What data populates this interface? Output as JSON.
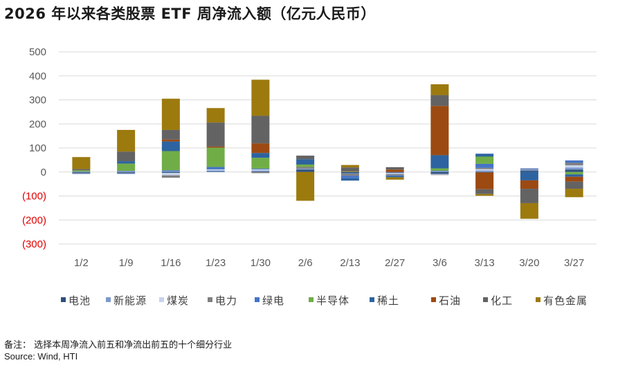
{
  "title": "2026 年以来各类股票 ETF 周净流入额（亿元人民币）",
  "note": "备注：  选择本周净流入前五和净流出前五的十个细分行业",
  "source": "Source: Wind, HTI",
  "colors": {
    "电池": "#2d4f7c",
    "新能源": "#7c99cc",
    "煤炭": "#c7d3ea",
    "电力": "#7f7f7f",
    "绿电": "#4674c5",
    "半导体": "#71ad47",
    "稀土": "#2d63a0",
    "石油": "#9c4a12",
    "化工": "#636363",
    "有色金属": "#9c7a0e",
    "negative_tick": "#e00000",
    "grid": "#d9d9d9"
  },
  "chart_data": {
    "type": "bar",
    "stacked": true,
    "title": "2026 年以来各类股票 ETF 周净流入额（亿元人民币）",
    "xlabel": "",
    "ylabel": "",
    "ylim": [
      -300,
      500
    ],
    "yticks": [
      500,
      400,
      300,
      200,
      100,
      0,
      -100,
      -200,
      -300
    ],
    "ytick_labels": [
      "500",
      "400",
      "300",
      "200",
      "100",
      "0",
      "(100)",
      "(200)",
      "(300)"
    ],
    "grid": true,
    "legend_position": "bottom",
    "categories": [
      "1/2",
      "1/9",
      "1/16",
      "1/23",
      "1/30",
      "2/6",
      "2/13",
      "2/27",
      "3/6",
      "3/13",
      "3/20",
      "3/27"
    ],
    "series": [
      {
        "name": "电池",
        "values": [
          -3,
          -3,
          -4,
          2,
          2,
          10,
          -5,
          -3,
          -8,
          -2,
          5,
          10
        ]
      },
      {
        "name": "新能源",
        "values": [
          2,
          5,
          3,
          5,
          4,
          4,
          -3,
          -2,
          3,
          6,
          5,
          8
        ]
      },
      {
        "name": "煤炭",
        "values": [
          0,
          0,
          -10,
          4,
          5,
          0,
          0,
          -4,
          -3,
          6,
          0,
          10
        ]
      },
      {
        "name": "电力",
        "values": [
          -2,
          -2,
          -10,
          0,
          -5,
          7,
          -8,
          -5,
          -2,
          5,
          2,
          10
        ]
      },
      {
        "name": "绿电",
        "values": [
          -3,
          -3,
          4,
          10,
          3,
          0,
          -10,
          -3,
          2,
          17,
          3,
          10
        ]
      },
      {
        "name": "半导体",
        "values": [
          5,
          30,
          80,
          80,
          45,
          10,
          2,
          0,
          10,
          30,
          0,
          -10
        ]
      },
      {
        "name": "稀土",
        "values": [
          0,
          10,
          40,
          0,
          20,
          22,
          -10,
          -5,
          55,
          12,
          -35,
          -10
        ]
      },
      {
        "name": "石油",
        "values": [
          0,
          0,
          8,
          5,
          40,
          0,
          2,
          10,
          205,
          -70,
          -35,
          -20
        ]
      },
      {
        "name": "化工",
        "values": [
          5,
          40,
          40,
          100,
          115,
          15,
          15,
          10,
          45,
          -20,
          -60,
          -30
        ]
      },
      {
        "name": "有色金属",
        "values": [
          50,
          90,
          130,
          60,
          150,
          -120,
          10,
          -10,
          45,
          -7,
          -65,
          -35
        ]
      }
    ]
  }
}
